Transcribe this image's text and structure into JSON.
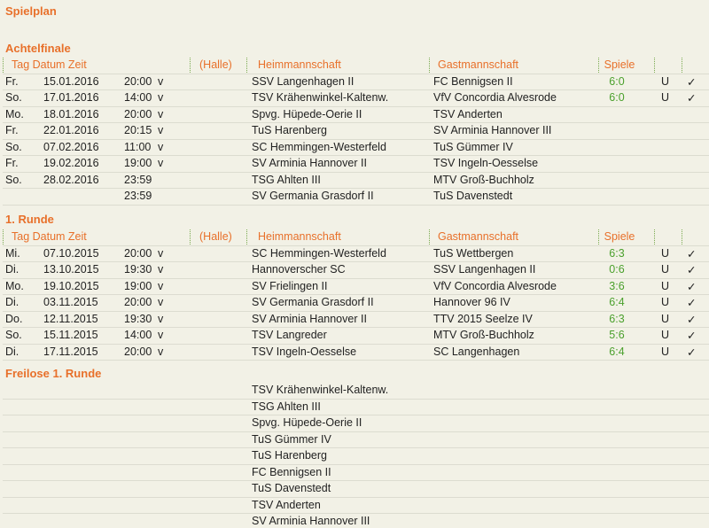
{
  "page_title": "Spielplan",
  "header": {
    "datetime": "Tag Datum Zeit",
    "halle": "(Halle)",
    "home": "Heimmannschaft",
    "guest": "Gastmannschaft",
    "games": "Spiele"
  },
  "sections": [
    {
      "title": "Achtelfinale",
      "matches": [
        {
          "day": "Fr.",
          "date": "15.01.2016",
          "time": "20:00",
          "v": "v",
          "home": "SSV Langenhagen II",
          "guest": "FC Bennigsen II",
          "result": "6:0",
          "u": "U",
          "check": "✓"
        },
        {
          "day": "So.",
          "date": "17.01.2016",
          "time": "14:00",
          "v": "v",
          "home": "TSV Krähenwinkel-Kaltenw.",
          "guest": "VfV Concordia Alvesrode",
          "result": "6:0",
          "u": "U",
          "check": "✓"
        },
        {
          "day": "Mo.",
          "date": "18.01.2016",
          "time": "20:00",
          "v": "v",
          "home": "Spvg. Hüpede-Oerie II",
          "guest": "TSV Anderten"
        },
        {
          "day": "Fr.",
          "date": "22.01.2016",
          "time": "20:15",
          "v": "v",
          "home": "TuS Harenberg",
          "guest": "SV Arminia Hannover III"
        },
        {
          "day": "So.",
          "date": "07.02.2016",
          "time": "11:00",
          "v": "v",
          "home": "SC Hemmingen-Westerfeld",
          "guest": "TuS Gümmer IV"
        },
        {
          "day": "Fr.",
          "date": "19.02.2016",
          "time": "19:00",
          "v": "v",
          "home": "SV Arminia Hannover II",
          "guest": "TSV Ingeln-Oesselse"
        },
        {
          "day": "So.",
          "date": "28.02.2016",
          "time": "23:59",
          "home": "TSG Ahlten III",
          "guest": "MTV Groß-Buchholz"
        },
        {
          "time": "23:59",
          "home": "SV Germania Grasdorf II",
          "guest": "TuS Davenstedt"
        }
      ]
    },
    {
      "title": "1. Runde",
      "matches": [
        {
          "day": "Mi.",
          "date": "07.10.2015",
          "time": "20:00",
          "v": "v",
          "home": "SC Hemmingen-Westerfeld",
          "guest": "TuS Wettbergen",
          "result": "6:3",
          "u": "U",
          "check": "✓"
        },
        {
          "day": "Di.",
          "date": "13.10.2015",
          "time": "19:30",
          "v": "v",
          "home": "Hannoverscher SC",
          "guest": "SSV Langenhagen II",
          "result": "0:6",
          "u": "U",
          "check": "✓"
        },
        {
          "day": "Mo.",
          "date": "19.10.2015",
          "time": "19:00",
          "v": "v",
          "home": "SV Frielingen II",
          "guest": "VfV Concordia Alvesrode",
          "result": "3:6",
          "u": "U",
          "check": "✓"
        },
        {
          "day": "Di.",
          "date": "03.11.2015",
          "time": "20:00",
          "v": "v",
          "home": "SV Germania Grasdorf II",
          "guest": "Hannover 96 IV",
          "result": "6:4",
          "u": "U",
          "check": "✓"
        },
        {
          "day": "Do.",
          "date": "12.11.2015",
          "time": "19:30",
          "v": "v",
          "home": "SV Arminia Hannover II",
          "guest": "TTV 2015 Seelze IV",
          "result": "6:3",
          "u": "U",
          "check": "✓"
        },
        {
          "day": "So.",
          "date": "15.11.2015",
          "time": "14:00",
          "v": "v",
          "home": "TSV Langreder",
          "guest": "MTV Groß-Buchholz",
          "result": "5:6",
          "u": "U",
          "check": "✓"
        },
        {
          "day": "Di.",
          "date": "17.11.2015",
          "time": "20:00",
          "v": "v",
          "home": "TSV Ingeln-Oesselse",
          "guest": "SC Langenhagen",
          "result": "6:4",
          "u": "U",
          "check": "✓"
        }
      ]
    }
  ],
  "freilose": {
    "title": "Freilose 1. Runde",
    "teams": [
      "TSV Krähenwinkel-Kaltenw.",
      "TSG Ahlten III",
      "Spvg. Hüpede-Oerie II",
      "TuS Gümmer IV",
      "TuS Harenberg",
      "FC Bennigsen II",
      "TuS Davenstedt",
      "TSV Anderten",
      "SV Arminia Hannover III"
    ]
  },
  "colors": {
    "accent": "#e8702a",
    "result": "#4aa02c"
  }
}
